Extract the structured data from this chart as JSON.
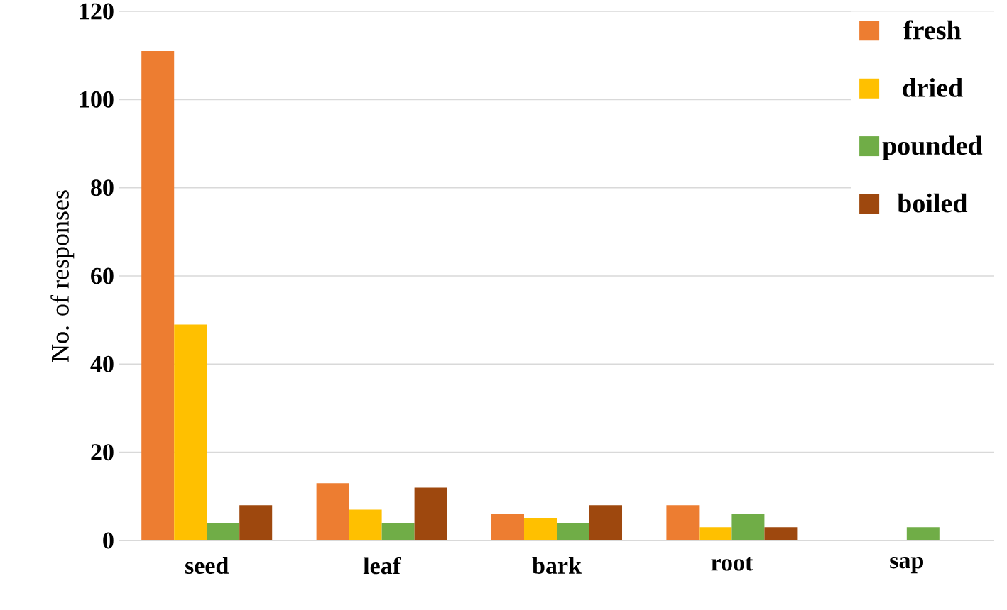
{
  "chart_data": {
    "type": "bar",
    "ylabel": "No. of responses",
    "categories": [
      "seed",
      "leaf",
      "bark",
      "root",
      "sap"
    ],
    "series": [
      {
        "name": "fresh",
        "color": "#ed7d31",
        "values": [
          111,
          13,
          6,
          8,
          null
        ]
      },
      {
        "name": "dried",
        "color": "#ffc000",
        "values": [
          49,
          7,
          5,
          3,
          null
        ]
      },
      {
        "name": "pounded",
        "color": "#70ad47",
        "values": [
          4,
          4,
          4,
          6,
          3
        ]
      },
      {
        "name": "boiled",
        "color": "#9e480e",
        "values": [
          8,
          12,
          8,
          3,
          null
        ]
      }
    ],
    "ylim": [
      0,
      120
    ],
    "yticks": [
      0,
      20,
      40,
      60,
      80,
      100,
      120
    ],
    "grid": "y",
    "legend": "top right"
  }
}
